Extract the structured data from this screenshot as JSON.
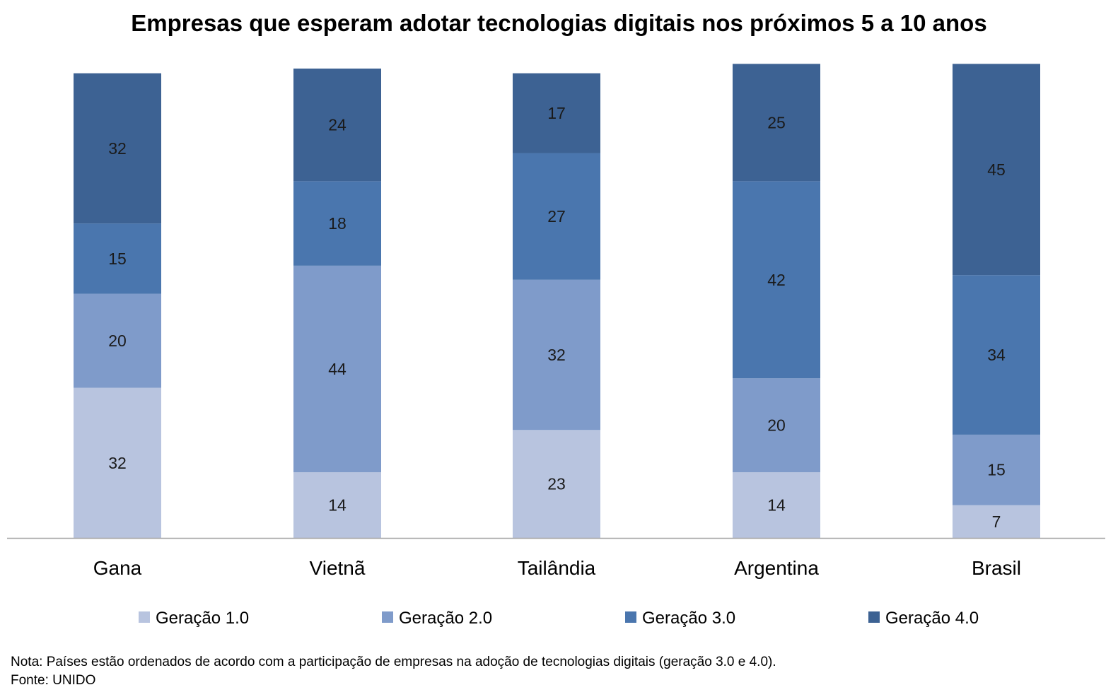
{
  "chart_data": {
    "type": "bar",
    "stacked": true,
    "title": "Empresas que esperam adotar tecnologias digitais nos próximos 5 a 10 anos",
    "categories": [
      "Gana",
      "Vietnã",
      "Tailândia",
      "Argentina",
      "Brasil"
    ],
    "series": [
      {
        "name": "Geração 1.0",
        "color": "#b8c4df",
        "values": [
          32,
          14,
          23,
          14,
          7
        ]
      },
      {
        "name": "Geração 2.0",
        "color": "#7f9bca",
        "values": [
          20,
          44,
          32,
          20,
          15
        ]
      },
      {
        "name": "Geração 3.0",
        "color": "#4a76ae",
        "values": [
          15,
          18,
          27,
          42,
          34
        ]
      },
      {
        "name": "Geração 4.0",
        "color": "#3d6293",
        "values": [
          32,
          24,
          17,
          25,
          45
        ]
      }
    ],
    "ylim": [
      0,
      100
    ],
    "grid": false,
    "legend": "bottom",
    "axis_color": "#a6a6a6"
  },
  "note": "Nota: Países estão ordenados de acordo com a participação de empresas na adoção de tecnologias digitais (geração 3.0 e 4.0).",
  "source": "Fonte: UNIDO"
}
